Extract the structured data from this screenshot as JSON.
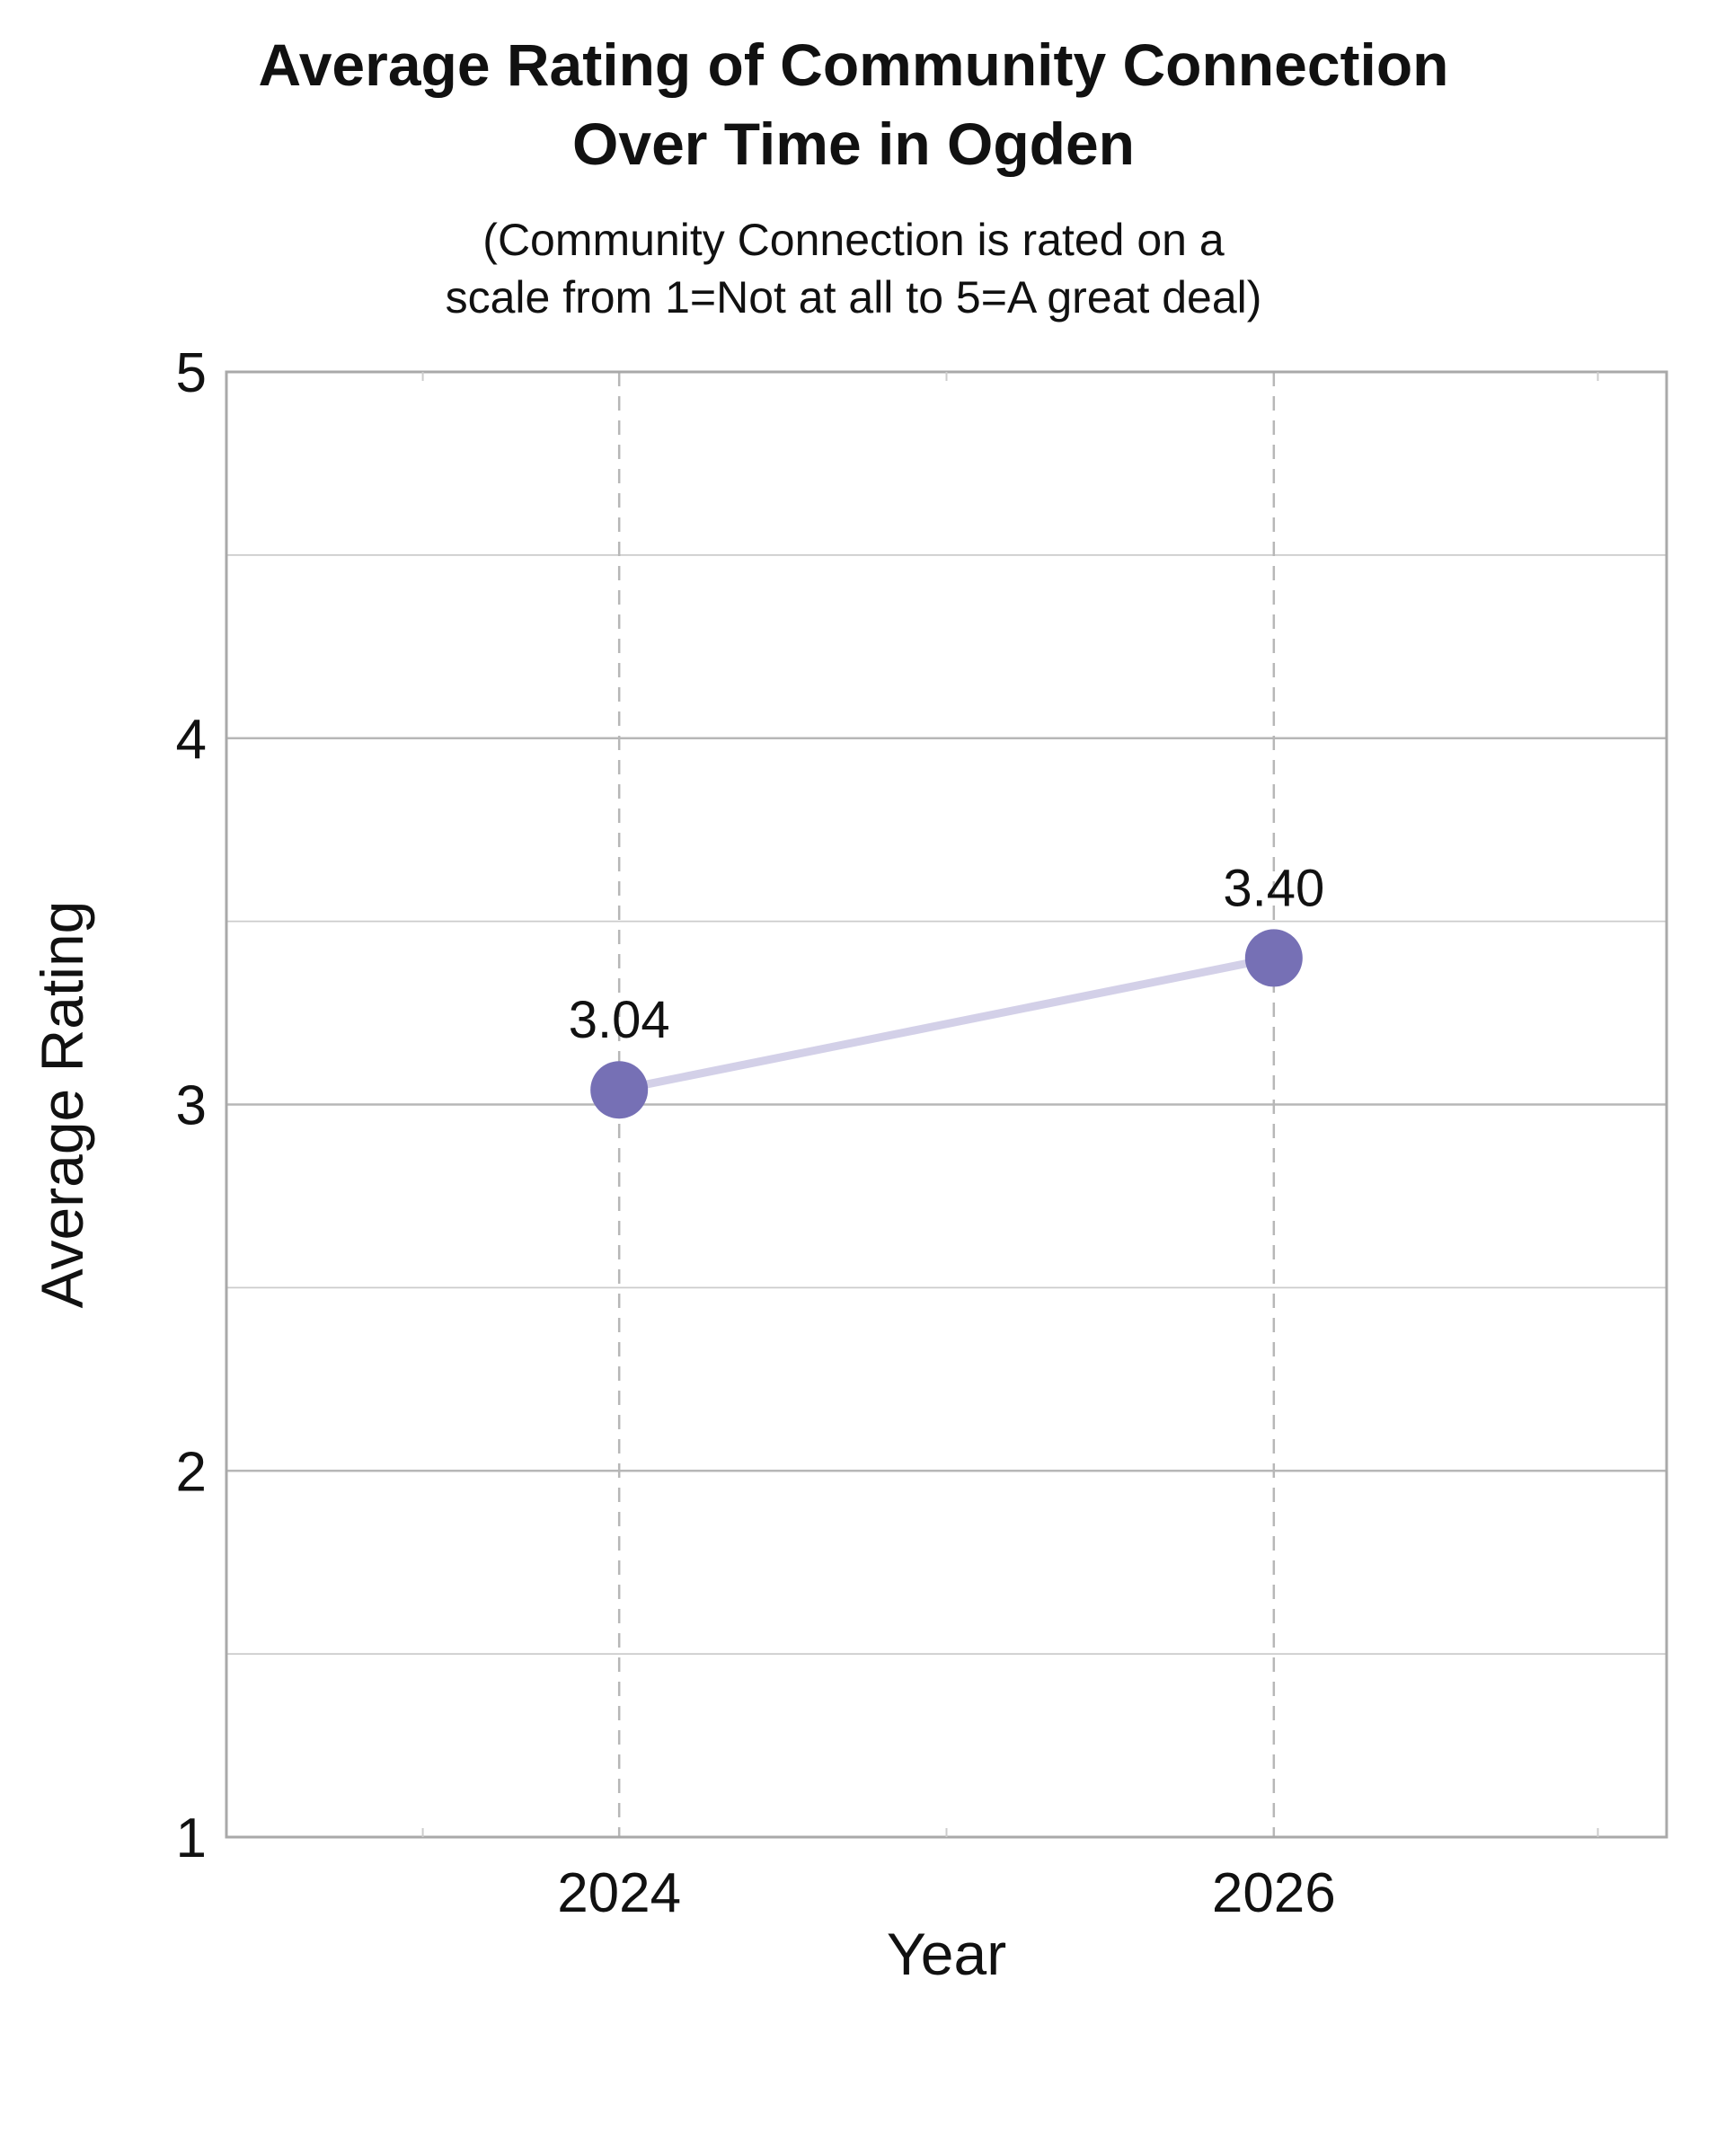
{
  "chart_data": {
    "type": "line",
    "title_lines": [
      "Average Rating of Community Connection",
      "Over Time in Ogden"
    ],
    "subtitle_lines": [
      "(Community Connection is rated on a",
      "scale from 1=Not at all to 5=A great deal)"
    ],
    "xlabel": "Year",
    "ylabel": "Average Rating",
    "x": [
      2024,
      2026
    ],
    "x_tick_labels": [
      "2024",
      "2026"
    ],
    "xlim": [
      2022.8,
      2027.2
    ],
    "series": [
      {
        "values": [
          3.04,
          3.4
        ],
        "data_labels": [
          "3.04",
          "3.40"
        ],
        "marker_color": "#7670b5",
        "line_color": "#d3d0e8"
      }
    ],
    "ylim": [
      1,
      5
    ],
    "y_ticks": [
      1,
      2,
      3,
      4,
      5
    ],
    "y_tick_labels": [
      "1",
      "2",
      "3",
      "4",
      "5"
    ],
    "y_minor_ticks": [
      1.5,
      2.5,
      3.5,
      4.5
    ],
    "grid": true,
    "grid_color": "#b7b7b7",
    "frame_color": "#a9a9a9"
  }
}
